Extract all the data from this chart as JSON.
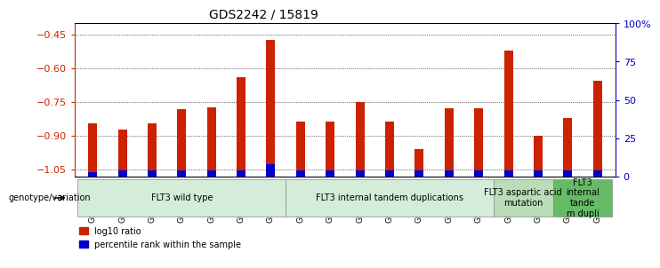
{
  "title": "GDS2242 / 15819",
  "samples": [
    "GSM48254",
    "GSM48507",
    "GSM48510",
    "GSM48546",
    "GSM48584",
    "GSM48585",
    "GSM48586",
    "GSM48255",
    "GSM48501",
    "GSM48503",
    "GSM48539",
    "GSM48543",
    "GSM48587",
    "GSM48588",
    "GSM48253",
    "GSM48350",
    "GSM48541",
    "GSM48252"
  ],
  "log10_ratio": [
    -0.845,
    -0.872,
    -0.845,
    -0.78,
    -0.775,
    -0.64,
    -0.475,
    -0.838,
    -0.838,
    -0.748,
    -0.838,
    -0.958,
    -0.778,
    -0.778,
    -0.52,
    -0.9,
    -0.82,
    -0.655
  ],
  "percentile_rank": [
    3,
    4,
    4,
    4,
    4,
    4,
    8,
    4,
    4,
    4,
    4,
    4,
    4,
    4,
    4,
    4,
    4,
    4
  ],
  "groups": [
    {
      "label": "FLT3 wild type",
      "start": 0,
      "end": 7,
      "color": "#d4edda"
    },
    {
      "label": "FLT3 internal tandem duplications",
      "start": 7,
      "end": 14,
      "color": "#d4edda"
    },
    {
      "label": "FLT3 aspartic acid\nmutation",
      "start": 14,
      "end": 16,
      "color": "#b8ddb8"
    },
    {
      "label": "FLT3\ninternal\ntande\nm dupli",
      "start": 16,
      "end": 18,
      "color": "#66bb66"
    }
  ],
  "ylim_left": [
    -1.08,
    -0.4
  ],
  "yticks_left": [
    -1.05,
    -0.9,
    -0.75,
    -0.6,
    -0.45
  ],
  "yticks_right": [
    0,
    25,
    50,
    75,
    100
  ],
  "bar_color": "#cc2200",
  "blue_color": "#0000cc",
  "background_color": "#ffffff",
  "grid_color": "#000000",
  "title_color": "#000000",
  "left_axis_color": "#cc2200",
  "right_axis_color": "#0000cc"
}
